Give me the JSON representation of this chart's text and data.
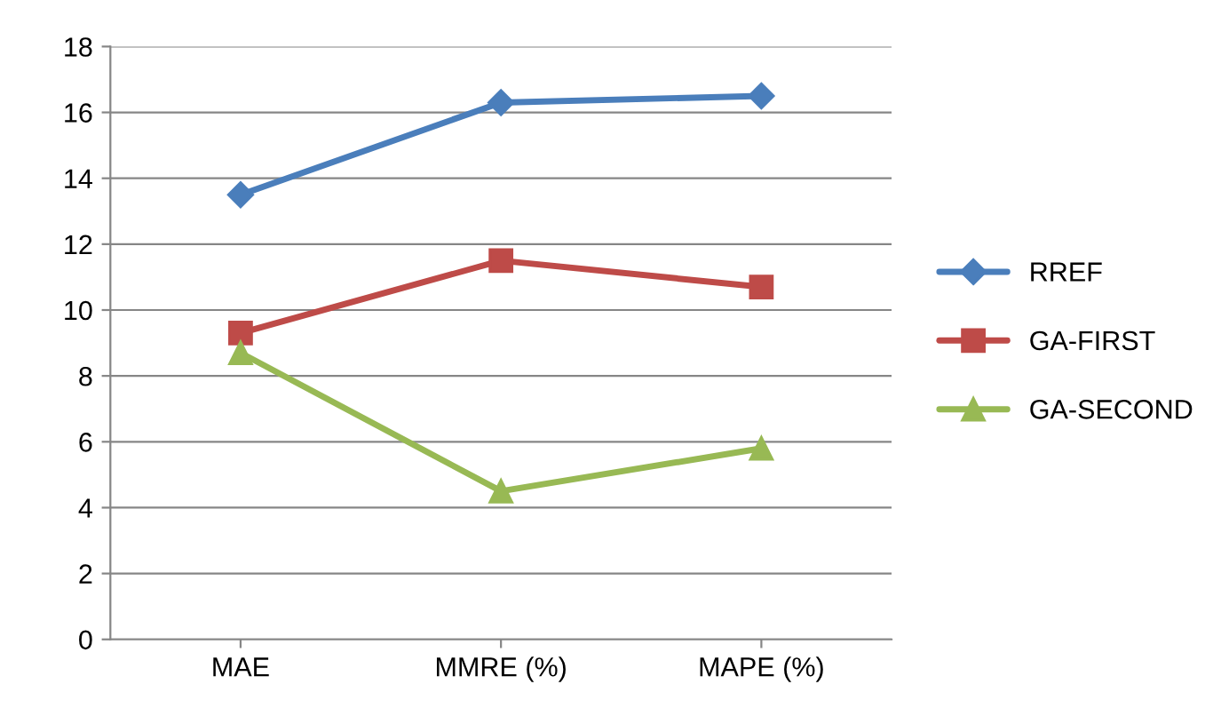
{
  "chart_data": {
    "type": "line",
    "categories": [
      "MAE",
      "MMRE (%)",
      "MAPE (%)"
    ],
    "series": [
      {
        "name": "RREF",
        "color": "#4a7ebb",
        "marker": "diamond",
        "values": [
          13.5,
          16.3,
          16.5
        ]
      },
      {
        "name": "GA-FIRST",
        "color": "#be4b48",
        "marker": "square",
        "values": [
          9.3,
          11.5,
          10.7
        ]
      },
      {
        "name": "GA-SECOND",
        "color": "#98b954",
        "marker": "triangle",
        "values": [
          8.7,
          4.5,
          5.8
        ]
      }
    ],
    "ylim": [
      0,
      18
    ],
    "yticks": [
      0,
      2,
      4,
      6,
      8,
      10,
      12,
      14,
      16,
      18
    ],
    "grid": "y",
    "legend": "right",
    "line_style": "solid"
  }
}
